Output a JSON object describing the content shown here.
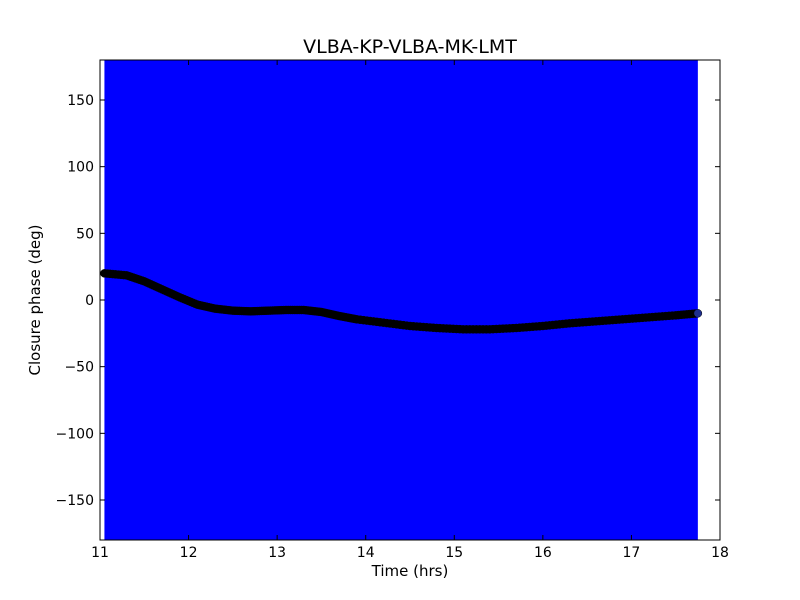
{
  "chart_data": {
    "type": "scatter",
    "title": "VLBA-KP-VLBA-MK-LMT",
    "xlabel": "Time (hrs)",
    "ylabel": "Closure phase (deg)",
    "xlim": [
      11,
      18
    ],
    "ylim": [
      -180,
      180
    ],
    "xticks": [
      11,
      12,
      13,
      14,
      15,
      16,
      17,
      18
    ],
    "yticks": [
      150,
      100,
      50,
      0,
      -50,
      -100,
      -150
    ],
    "xtick_labels": [
      "11",
      "12",
      "13",
      "14",
      "15",
      "16",
      "17",
      "18"
    ],
    "ytick_labels": [
      "150",
      "100",
      "50",
      "0",
      "−50",
      "−100",
      "−150"
    ],
    "grid": false,
    "series": [
      {
        "error_fill_color": "#0000ff",
        "marker_color": "#000000",
        "x_range": [
          11.05,
          17.75
        ],
        "y_range": [
          -180,
          180
        ],
        "points": [
          [
            11.05,
            20
          ],
          [
            11.3,
            18.5
          ],
          [
            11.5,
            14
          ],
          [
            11.7,
            8
          ],
          [
            11.9,
            2
          ],
          [
            12.1,
            -3.5
          ],
          [
            12.3,
            -6.5
          ],
          [
            12.5,
            -8
          ],
          [
            12.7,
            -8.5
          ],
          [
            12.9,
            -8
          ],
          [
            13.1,
            -7.5
          ],
          [
            13.3,
            -7.5
          ],
          [
            13.5,
            -9
          ],
          [
            13.7,
            -12
          ],
          [
            13.9,
            -14.5
          ],
          [
            14.2,
            -17
          ],
          [
            14.5,
            -19.5
          ],
          [
            14.8,
            -21
          ],
          [
            15.1,
            -22
          ],
          [
            15.4,
            -22
          ],
          [
            15.7,
            -21
          ],
          [
            16.0,
            -19.5
          ],
          [
            16.3,
            -17.5
          ],
          [
            16.6,
            -16
          ],
          [
            16.9,
            -14.5
          ],
          [
            17.2,
            -13
          ],
          [
            17.5,
            -11.5
          ],
          [
            17.75,
            -10
          ]
        ]
      }
    ]
  }
}
